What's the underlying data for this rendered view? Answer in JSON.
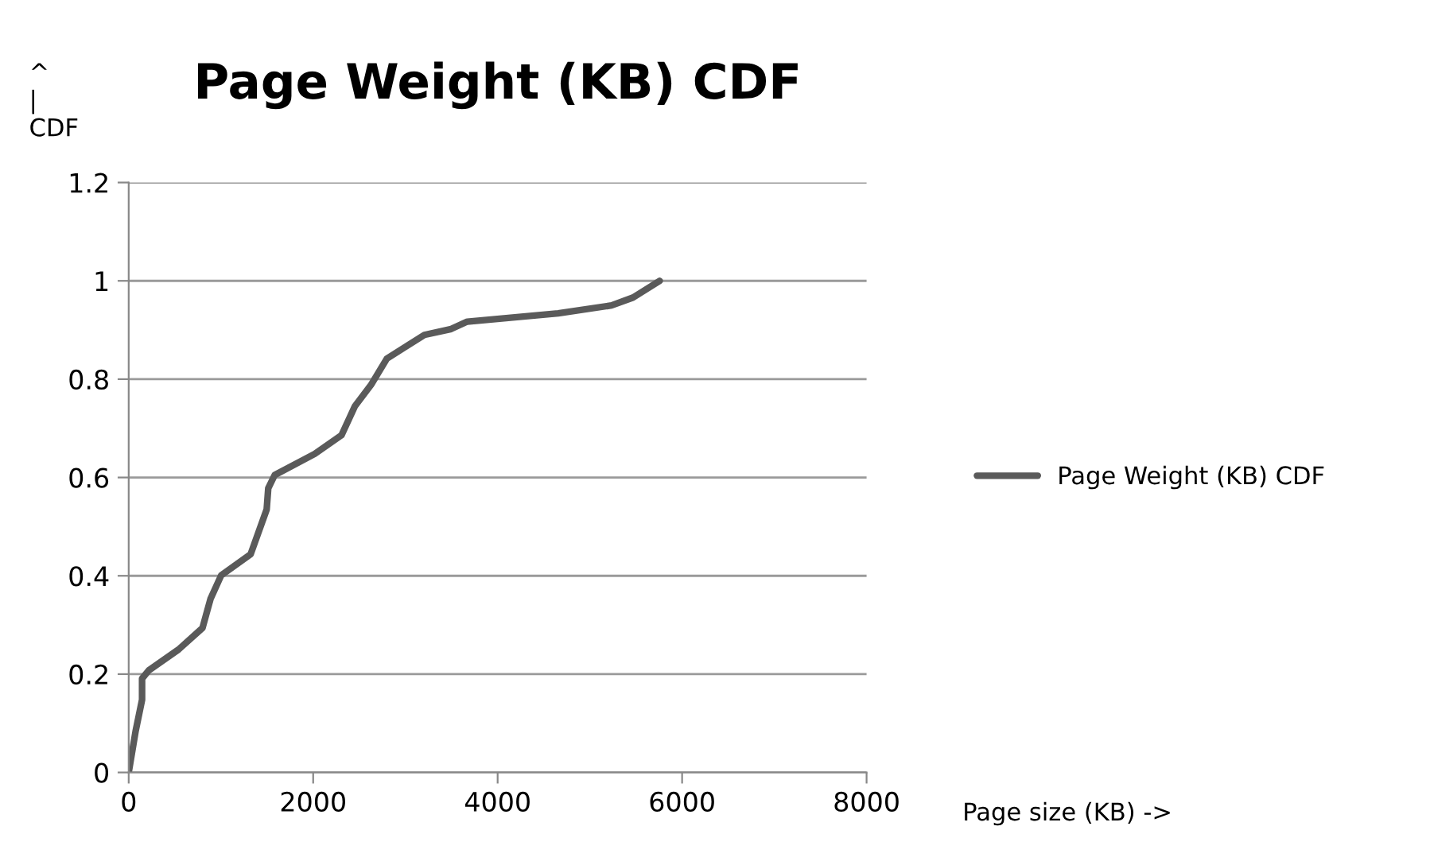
{
  "chart_data": {
    "type": "line",
    "title": "Page Weight (KB) CDF",
    "xlabel": "Page size (KB) ->",
    "ylabel": "^\n|\nCDF",
    "xlim": [
      0,
      8000
    ],
    "xticks": [
      0,
      2000,
      4000,
      6000,
      8000
    ],
    "ylim": [
      0,
      1.2
    ],
    "yticks": [
      0,
      0.2,
      0.4,
      0.6,
      0.8,
      1,
      1.2
    ],
    "grid": "y",
    "legend": "right",
    "marker": "none",
    "line_style": "solid",
    "series": [
      {
        "name": "Page Weight (KB) CDF",
        "color": "#5a5a5a",
        "x": [
          0,
          75,
          145,
          145,
          220,
          540,
          800,
          887,
          1003,
          1322,
          1496,
          1513,
          1583,
          2017,
          2307,
          2452,
          2626,
          2800,
          3206,
          3496,
          3670,
          4656,
          5235,
          5468,
          5757
        ],
        "values": [
          0,
          0.084,
          0.148,
          0.191,
          0.208,
          0.25,
          0.294,
          0.353,
          0.401,
          0.444,
          0.535,
          0.578,
          0.605,
          0.648,
          0.686,
          0.745,
          0.788,
          0.842,
          0.89,
          0.902,
          0.917,
          0.934,
          0.95,
          0.966,
          1.0
        ]
      }
    ]
  }
}
